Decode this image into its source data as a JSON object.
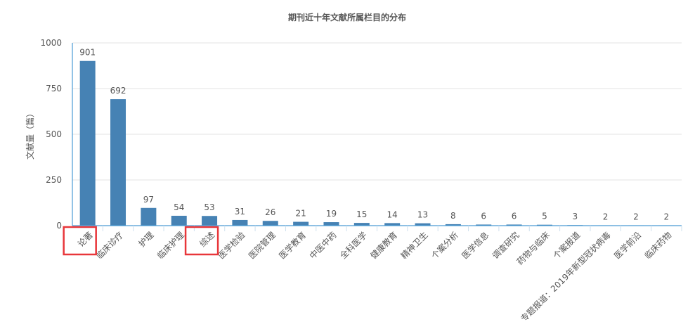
{
  "chart_data": {
    "type": "bar",
    "title": "期刊近十年文献所属栏目的分布",
    "xlabel": "",
    "ylabel": "文献量（篇）",
    "ylim": [
      0,
      1000
    ],
    "yticks": [
      0,
      250,
      500,
      750,
      1000
    ],
    "grid": true,
    "legend": null,
    "categories": [
      "论著",
      "临床诊疗",
      "护理",
      "临床护理",
      "综述",
      "医学检验",
      "医院管理",
      "医学教育",
      "中医中药",
      "全科医学",
      "健康教育",
      "精神卫生",
      "个案分析",
      "医学信息",
      "调查研究",
      "药物与临床",
      "个案报道",
      "专题报道：2019年新型冠状病毒",
      "医学前沿",
      "临床药物"
    ],
    "values": [
      901,
      692,
      97,
      54,
      53,
      31,
      26,
      21,
      19,
      15,
      14,
      13,
      8,
      6,
      6,
      5,
      3,
      2,
      2,
      2
    ],
    "bar_color": "#4682b4",
    "highlighted_categories": [
      "论著",
      "综述"
    ],
    "highlight_color": "#e8363a"
  }
}
